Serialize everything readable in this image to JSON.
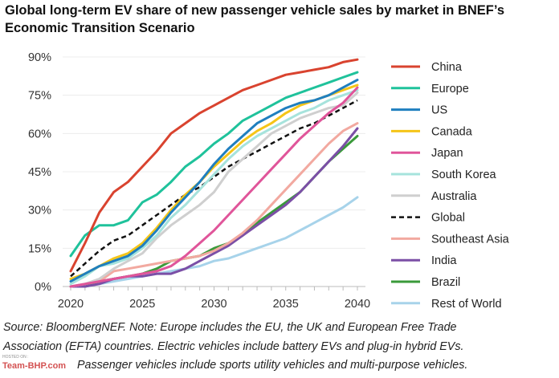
{
  "chart_data": {
    "type": "line",
    "title": "Global long-term EV share of new passenger vehicle sales by market in BNEF’s Economic Transition Scenario",
    "xlabel": "",
    "ylabel": "",
    "x": [
      2020,
      2021,
      2022,
      2023,
      2024,
      2025,
      2026,
      2027,
      2028,
      2029,
      2030,
      2031,
      2032,
      2033,
      2034,
      2035,
      2036,
      2037,
      2038,
      2039,
      2040
    ],
    "x_ticks": [
      "2020",
      "2025",
      "2030",
      "2035",
      "2040"
    ],
    "y_ticks": [
      "0%",
      "15%",
      "30%",
      "45%",
      "60%",
      "75%",
      "90%"
    ],
    "ylim": [
      0,
      90
    ],
    "xlim": [
      2020,
      2040
    ],
    "grid": "horizontal",
    "legend_position": "right",
    "series": [
      {
        "name": "China",
        "color": "#d9432f",
        "values": [
          6,
          17,
          29,
          37,
          41,
          47,
          53,
          60,
          64,
          68,
          71,
          74,
          77,
          79,
          81,
          83,
          84,
          85,
          86,
          88,
          89
        ]
      },
      {
        "name": "Europe",
        "color": "#1fc29b",
        "values": [
          12,
          20,
          24,
          24,
          26,
          33,
          36,
          41,
          47,
          51,
          56,
          60,
          65,
          68,
          71,
          74,
          76,
          78,
          80,
          82,
          84
        ]
      },
      {
        "name": "US",
        "color": "#1f7fbf",
        "values": [
          2,
          5,
          8,
          10,
          12,
          16,
          22,
          29,
          35,
          41,
          48,
          54,
          59,
          64,
          67,
          70,
          72,
          73,
          75,
          78,
          81
        ]
      },
      {
        "name": "Canada",
        "color": "#f5c518",
        "values": [
          3,
          5,
          8,
          11,
          13,
          17,
          23,
          30,
          36,
          41,
          47,
          52,
          57,
          61,
          64,
          68,
          71,
          73,
          75,
          77,
          79
        ]
      },
      {
        "name": "Japan",
        "color": "#e0559a",
        "values": [
          0,
          1,
          2,
          3,
          4,
          5,
          6,
          8,
          12,
          17,
          22,
          28,
          34,
          40,
          46,
          52,
          58,
          63,
          68,
          72,
          78
        ]
      },
      {
        "name": "South Korea",
        "color": "#a6e3dc",
        "values": [
          1,
          4,
          8,
          9,
          11,
          15,
          20,
          27,
          32,
          38,
          44,
          50,
          55,
          59,
          62,
          65,
          68,
          70,
          73,
          75,
          77
        ]
      },
      {
        "name": "Australia",
        "color": "#cfcfcf",
        "values": [
          0,
          1,
          3,
          7,
          10,
          13,
          19,
          24,
          28,
          32,
          37,
          45,
          50,
          55,
          60,
          63,
          66,
          68,
          70,
          71,
          76
        ]
      },
      {
        "name": "Global",
        "color": "#111111",
        "dashed": true,
        "values": [
          4,
          9,
          14,
          18,
          20,
          24,
          28,
          32,
          36,
          39,
          43,
          47,
          50,
          53,
          56,
          59,
          62,
          64,
          67,
          70,
          73
        ]
      },
      {
        "name": "Southeast Asia",
        "color": "#f2a9a0",
        "values": [
          0,
          1,
          2,
          6,
          7,
          8,
          9,
          10,
          11,
          12,
          14,
          17,
          21,
          26,
          32,
          38,
          44,
          50,
          56,
          61,
          64
        ]
      },
      {
        "name": "India",
        "color": "#7b4fa6",
        "values": [
          0,
          0,
          1,
          3,
          4,
          4,
          5,
          5,
          7,
          10,
          13,
          16,
          20,
          24,
          28,
          32,
          37,
          43,
          49,
          55,
          62
        ]
      },
      {
        "name": "Brazil",
        "color": "#3a9a3a",
        "values": [
          0,
          0,
          2,
          3,
          4,
          5,
          7,
          10,
          11,
          12,
          15,
          17,
          20,
          25,
          29,
          33,
          37,
          43,
          49,
          54,
          59
        ]
      },
      {
        "name": "Rest of World",
        "color": "#a7d3ea",
        "values": [
          0,
          0,
          1,
          2,
          3,
          4,
          5,
          6,
          7,
          8,
          10,
          11,
          13,
          15,
          17,
          19,
          22,
          25,
          28,
          31,
          35
        ]
      }
    ]
  },
  "footnote": {
    "lines": [
      "Source: BloombergNEF. Note: Europe includes the EU, the UK and European Free Trade",
      "Association (EFTA) countries. Electric vehicles include battery EVs and plug-in hybrid EVs.",
      "Passenger vehicles include sports utility vehicles and multi-purpose vehicles."
    ]
  },
  "watermark": {
    "hosted": "HOSTED ON :",
    "logo": "Team-BHP.com"
  }
}
